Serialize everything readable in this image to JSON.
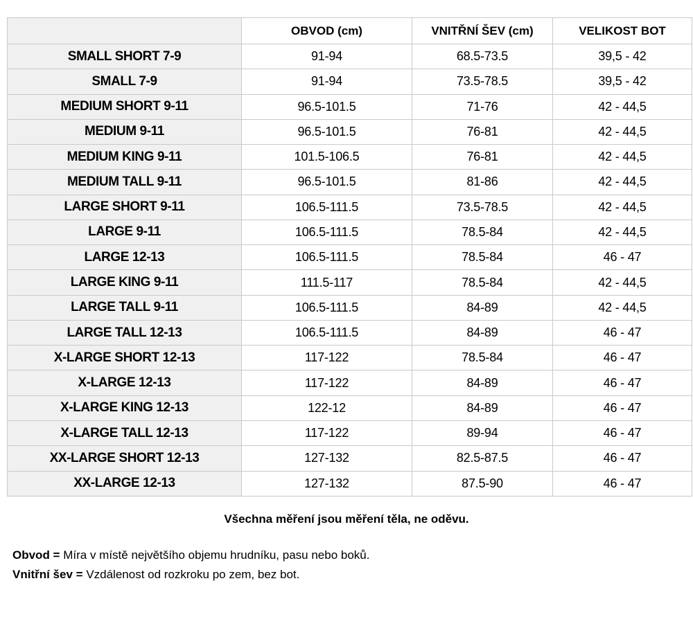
{
  "chart_data": {
    "type": "table",
    "columns": [
      "",
      "OBVOD (cm)",
      "VNITŘNÍ ŠEV (cm)",
      "VELIKOST BOT"
    ],
    "rows": [
      [
        "SMALL SHORT 7-9",
        "91-94",
        "68.5-73.5",
        "39,5 - 42"
      ],
      [
        "SMALL 7-9",
        "91-94",
        "73.5-78.5",
        "39,5 - 42"
      ],
      [
        "MEDIUM SHORT 9-11",
        "96.5-101.5",
        "71-76",
        "42 - 44,5"
      ],
      [
        "MEDIUM 9-11",
        "96.5-101.5",
        "76-81",
        "42 - 44,5"
      ],
      [
        "MEDIUM KING 9-11",
        "101.5-106.5",
        "76-81",
        "42 - 44,5"
      ],
      [
        "MEDIUM TALL 9-11",
        "96.5-101.5",
        "81-86",
        "42 - 44,5"
      ],
      [
        "LARGE SHORT 9-11",
        "106.5-111.5",
        "73.5-78.5",
        "42 - 44,5"
      ],
      [
        "LARGE 9-11",
        "106.5-111.5",
        "78.5-84",
        "42 - 44,5"
      ],
      [
        "LARGE 12-13",
        "106.5-111.5",
        "78.5-84",
        "46 - 47"
      ],
      [
        "LARGE KING 9-11",
        "111.5-117",
        "78.5-84",
        "42 - 44,5"
      ],
      [
        "LARGE TALL 9-11",
        "106.5-111.5",
        "84-89",
        "42 - 44,5"
      ],
      [
        "LARGE TALL 12-13",
        "106.5-111.5",
        "84-89",
        "46 - 47"
      ],
      [
        "X-LARGE SHORT 12-13",
        "117-122",
        "78.5-84",
        "46 - 47"
      ],
      [
        "X-LARGE 12-13",
        "117-122",
        "84-89",
        "46 - 47"
      ],
      [
        "X-LARGE KING 12-13",
        "122-12",
        "84-89",
        "46 - 47"
      ],
      [
        "X-LARGE TALL 12-13",
        "117-122",
        "89-94",
        "46 - 47"
      ],
      [
        "XX-LARGE SHORT 12-13",
        "127-132",
        "82.5-87.5",
        "46 - 47"
      ],
      [
        "XX-LARGE 12-13",
        "127-132",
        "87.5-90",
        "46 - 47"
      ]
    ]
  },
  "notes": {
    "measurement_note": "Všechna měření jsou měření těla, ne oděvu.",
    "definitions": [
      {
        "term": "Obvod =",
        "definition": "Míra v místě největšího objemu hrudníku, pasu nebo boků."
      },
      {
        "term": "Vnitřní šev =",
        "definition": "Vzdálenost od rozkroku po zem, bez bot."
      }
    ]
  },
  "colors": {
    "background": "#ffffff",
    "row_label_bg": "#f0f0f0",
    "border": "#c9c9c9",
    "text": "#000000"
  }
}
